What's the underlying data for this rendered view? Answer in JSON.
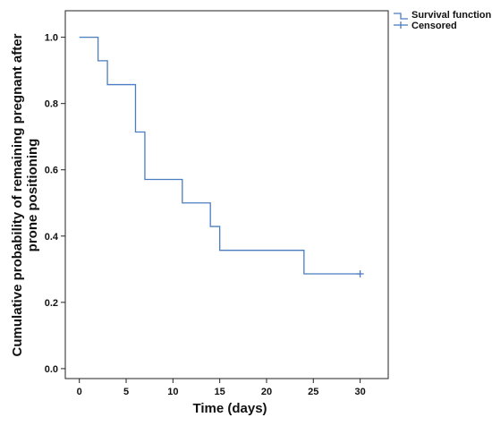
{
  "chart_data": {
    "type": "line",
    "xlabel": "Time (days)",
    "ylabel": "Cumulative probability of remaining pregnant after prone positioning",
    "ylabel_lines": [
      "Cumulative probability of remaining pregnant after",
      "prone positioning"
    ],
    "xlim": [
      -1.5,
      33
    ],
    "ylim": [
      -0.03,
      1.08
    ],
    "x_ticks": [
      0,
      5,
      10,
      15,
      20,
      25,
      30
    ],
    "y_ticks": [
      0.0,
      0.2,
      0.4,
      0.6,
      0.8,
      1.0
    ],
    "x_tick_labels": [
      "0",
      "5",
      "10",
      "15",
      "20",
      "25",
      "30"
    ],
    "y_tick_labels": [
      "0.0",
      "0.2",
      "0.4",
      "0.6",
      "0.8",
      "1.0"
    ],
    "grid": false,
    "legend_position": "top-right",
    "series": [
      {
        "name": "Survival function",
        "step": true,
        "color": "#4a7ec1",
        "x": [
          0,
          2,
          3,
          6,
          7,
          11,
          14,
          15,
          24,
          30
        ],
        "y": [
          1.0,
          0.929,
          0.857,
          0.714,
          0.571,
          0.5,
          0.429,
          0.357,
          0.286,
          0.286
        ]
      }
    ],
    "censored": {
      "name": "Censored",
      "x": [
        30
      ],
      "y": [
        0.286
      ]
    },
    "legend": [
      {
        "label": "Survival function",
        "symbol": "step-line"
      },
      {
        "label": "Censored",
        "symbol": "cross"
      }
    ]
  }
}
